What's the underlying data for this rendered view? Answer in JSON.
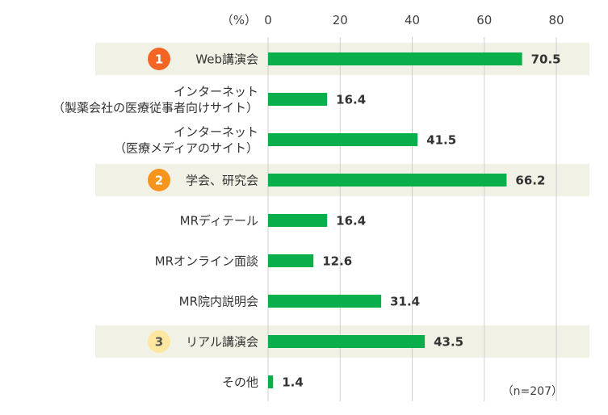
{
  "colors": {
    "bar": "#0aaf4b",
    "highlight_band": "#f2f1e5",
    "gridline": "#cfcfcf",
    "rank_badges": [
      "#f26522",
      "#f7941d",
      "#fde7a0"
    ],
    "rank_text": [
      "#ffffff",
      "#ffffff",
      "#555555"
    ]
  },
  "chart_data": {
    "type": "bar",
    "orientation": "horizontal",
    "unit_label": "（%）",
    "note": "（n=207）",
    "xlim": [
      0,
      80
    ],
    "xticks": [
      "0",
      "20",
      "40",
      "60",
      "80"
    ],
    "grid": true,
    "categories": [
      {
        "lines": [
          "Web講演会"
        ],
        "value": 70.5,
        "label": "70.5",
        "rank": "1"
      },
      {
        "lines": [
          "インターネット",
          "（製薬会社の医療従事者向けサイト）"
        ],
        "value": 16.4,
        "label": "16.4",
        "rank": null
      },
      {
        "lines": [
          "インターネット",
          "（医療メディアのサイト）"
        ],
        "value": 41.5,
        "label": "41.5",
        "rank": null
      },
      {
        "lines": [
          "学会、研究会"
        ],
        "value": 66.2,
        "label": "66.2",
        "rank": "2"
      },
      {
        "lines": [
          "MRディテール"
        ],
        "value": 16.4,
        "label": "16.4",
        "rank": null
      },
      {
        "lines": [
          "MRオンライン面談"
        ],
        "value": 12.6,
        "label": "12.6",
        "rank": null
      },
      {
        "lines": [
          "MR院内説明会"
        ],
        "value": 31.4,
        "label": "31.4",
        "rank": null
      },
      {
        "lines": [
          "リアル講演会"
        ],
        "value": 43.5,
        "label": "43.5",
        "rank": "3"
      },
      {
        "lines": [
          "その他"
        ],
        "value": 1.4,
        "label": "1.4",
        "rank": null
      }
    ]
  }
}
